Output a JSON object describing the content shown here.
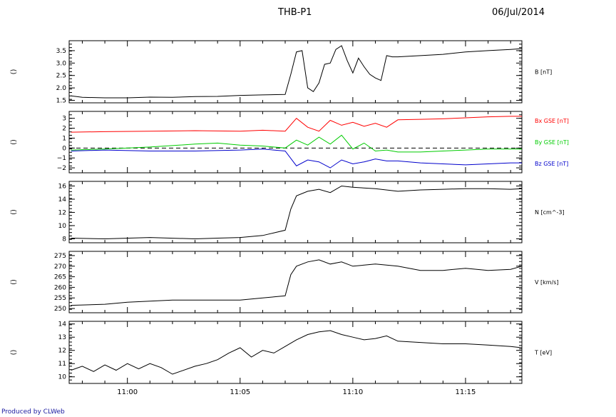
{
  "header": {
    "title": "THB-P1",
    "date": "06/Jul/2014"
  },
  "footer": {
    "credit": "Produced by CLWeb"
  },
  "chart_data": [
    {
      "type": "line",
      "panel": "B",
      "ylabel": "()",
      "ylim": [
        1.4,
        3.9
      ],
      "yticks": [
        1.5,
        2.0,
        2.5,
        3.0,
        3.5
      ],
      "ytick_labels": [
        "1.5",
        "2.0",
        "2.5",
        "3.0",
        "3.5"
      ],
      "series": [
        {
          "name": "B [nT]",
          "color": "#000000",
          "x": [
            "10:57:30",
            "10:58",
            "10:59",
            "11:00",
            "11:01",
            "11:02",
            "11:03",
            "11:04",
            "11:05",
            "11:06",
            "11:07",
            "11:07:15",
            "11:07:30",
            "11:07:45",
            "11:08",
            "11:08:15",
            "11:08:30",
            "11:08:45",
            "11:09",
            "11:09:15",
            "11:09:30",
            "11:09:45",
            "11:10",
            "11:10:15",
            "11:10:30",
            "11:10:45",
            "11:11",
            "11:11:15",
            "11:11:30",
            "11:11:45",
            "11:12",
            "11:13",
            "11:14",
            "11:15",
            "11:16",
            "11:17",
            "11:17:30"
          ],
          "y": [
            1.68,
            1.62,
            1.6,
            1.6,
            1.63,
            1.62,
            1.65,
            1.66,
            1.7,
            1.72,
            1.74,
            2.55,
            3.45,
            3.5,
            2.0,
            1.85,
            2.2,
            2.95,
            3.0,
            3.55,
            3.7,
            3.1,
            2.6,
            3.2,
            2.85,
            2.55,
            2.4,
            2.3,
            3.3,
            3.25,
            3.25,
            3.3,
            3.35,
            3.45,
            3.5,
            3.55,
            3.58
          ]
        }
      ]
    },
    {
      "type": "line",
      "panel": "B GSE components",
      "ylabel": "()",
      "ylim": [
        -2.5,
        3.7
      ],
      "yticks": [
        -2,
        -1,
        0,
        1,
        2,
        3
      ],
      "ytick_labels": [
        "−2",
        "−1",
        "0",
        "1",
        "2",
        "3"
      ],
      "reference_line": 0,
      "series": [
        {
          "name": "Bx GSE [nT]",
          "color": "#ff0000",
          "x": [
            "10:57:30",
            "10:59",
            "11:01",
            "11:03",
            "11:05",
            "11:06",
            "11:07",
            "11:07:30",
            "11:08",
            "11:08:30",
            "11:09",
            "11:09:30",
            "11:10",
            "11:10:30",
            "11:11",
            "11:11:30",
            "11:12",
            "11:13",
            "11:14",
            "11:15",
            "11:16",
            "11:17",
            "11:17:30"
          ],
          "y": [
            1.6,
            1.65,
            1.7,
            1.75,
            1.7,
            1.8,
            1.7,
            3.0,
            2.1,
            1.7,
            2.8,
            2.3,
            2.6,
            2.2,
            2.5,
            2.1,
            2.85,
            2.9,
            2.95,
            3.05,
            3.15,
            3.2,
            3.2
          ]
        },
        {
          "name": "By GSE [nT]",
          "color": "#00cc00",
          "x": [
            "10:57:30",
            "10:59",
            "11:01",
            "11:03",
            "11:04",
            "11:05",
            "11:06",
            "11:07",
            "11:07:30",
            "11:08",
            "11:08:30",
            "11:09",
            "11:09:30",
            "11:10",
            "11:10:30",
            "11:11",
            "11:11:30",
            "11:12",
            "11:13",
            "11:14",
            "11:15",
            "11:16",
            "11:17",
            "11:17:30"
          ],
          "y": [
            -0.2,
            -0.1,
            0.1,
            0.4,
            0.5,
            0.3,
            0.2,
            0.0,
            0.8,
            0.3,
            1.1,
            0.4,
            1.3,
            -0.1,
            0.5,
            -0.3,
            -0.2,
            -0.4,
            -0.4,
            -0.3,
            -0.2,
            -0.1,
            -0.1,
            -0.1
          ]
        },
        {
          "name": "Bz GSE [nT]",
          "color": "#0000cc",
          "x": [
            "10:57:30",
            "10:59",
            "11:01",
            "11:03",
            "11:05",
            "11:06",
            "11:07",
            "11:07:30",
            "11:08",
            "11:08:30",
            "11:09",
            "11:09:30",
            "11:10",
            "11:10:30",
            "11:11",
            "11:11:30",
            "11:12",
            "11:13",
            "11:14",
            "11:15",
            "11:16",
            "11:17",
            "11:17:30"
          ],
          "y": [
            -0.3,
            -0.2,
            -0.3,
            -0.3,
            -0.2,
            -0.1,
            -0.3,
            -1.8,
            -1.2,
            -1.4,
            -2.0,
            -1.2,
            -1.6,
            -1.4,
            -1.1,
            -1.3,
            -1.3,
            -1.5,
            -1.6,
            -1.7,
            -1.6,
            -1.5,
            -1.5
          ]
        }
      ]
    },
    {
      "type": "line",
      "panel": "N",
      "ylabel": "()",
      "ylim": [
        7.4,
        16.7
      ],
      "yticks": [
        8,
        10,
        12,
        14,
        16
      ],
      "ytick_labels": [
        "8",
        "10",
        "12",
        "14",
        "16"
      ],
      "series": [
        {
          "name": "N [cm^-3]",
          "color": "#000000",
          "x": [
            "10:57:30",
            "10:59",
            "11:01",
            "11:03",
            "11:04",
            "11:05",
            "11:06",
            "11:06:30",
            "11:07",
            "11:07:15",
            "11:07:30",
            "11:08",
            "11:08:30",
            "11:09",
            "11:09:30",
            "11:10",
            "11:11",
            "11:12",
            "11:13",
            "11:14",
            "11:15",
            "11:16",
            "11:17",
            "11:17:30"
          ],
          "y": [
            8.1,
            8.0,
            8.2,
            8.0,
            8.1,
            8.2,
            8.5,
            8.9,
            9.3,
            12.5,
            14.5,
            15.2,
            15.5,
            15.0,
            16.0,
            15.8,
            15.6,
            15.2,
            15.4,
            15.5,
            15.6,
            15.6,
            15.5,
            15.6
          ]
        }
      ]
    },
    {
      "type": "line",
      "panel": "V",
      "ylabel": "()",
      "ylim": [
        248,
        277
      ],
      "yticks": [
        250,
        255,
        260,
        265,
        270,
        275
      ],
      "ytick_labels": [
        "250",
        "255",
        "260",
        "265",
        "270",
        "275"
      ],
      "series": [
        {
          "name": "V [km/s]",
          "color": "#000000",
          "x": [
            "10:57:30",
            "10:59",
            "11:00",
            "11:01",
            "11:02",
            "11:03",
            "11:04",
            "11:05",
            "11:06",
            "11:06:30",
            "11:07",
            "11:07:15",
            "11:07:30",
            "11:08",
            "11:08:30",
            "11:09",
            "11:09:30",
            "11:10",
            "11:11",
            "11:12",
            "11:13",
            "11:14",
            "11:15",
            "11:16",
            "11:17",
            "11:17:30"
          ],
          "y": [
            251.5,
            252,
            253,
            253.5,
            254,
            254,
            254,
            254,
            255,
            255.5,
            256,
            266,
            270,
            272,
            273,
            271,
            272,
            270,
            271,
            270,
            268,
            268,
            269,
            268,
            268.5,
            270
          ]
        }
      ]
    },
    {
      "type": "line",
      "panel": "T",
      "ylabel": "()",
      "ylim": [
        9.5,
        14.2
      ],
      "yticks": [
        10,
        11,
        12,
        13,
        14
      ],
      "ytick_labels": [
        "10",
        "11",
        "12",
        "13",
        "14"
      ],
      "xticks": [
        "11:00",
        "11:05",
        "11:10",
        "11:15"
      ],
      "series": [
        {
          "name": "T [eV]",
          "color": "#000000",
          "x": [
            "10:57:30",
            "10:58",
            "10:58:30",
            "10:59",
            "10:59:30",
            "11:00",
            "11:00:30",
            "11:01",
            "11:01:30",
            "11:02",
            "11:03",
            "11:03:30",
            "11:04",
            "11:04:30",
            "11:05",
            "11:05:30",
            "11:06",
            "11:06:30",
            "11:07",
            "11:07:30",
            "11:08",
            "11:08:30",
            "11:09",
            "11:09:30",
            "11:10",
            "11:10:30",
            "11:11",
            "11:11:30",
            "11:12",
            "11:13",
            "11:14",
            "11:15",
            "11:16",
            "11:17",
            "11:17:30"
          ],
          "y": [
            10.5,
            10.8,
            10.4,
            10.9,
            10.5,
            11.0,
            10.6,
            11.0,
            10.7,
            10.2,
            10.8,
            11.0,
            11.3,
            11.8,
            12.2,
            11.5,
            12.0,
            11.8,
            12.3,
            12.8,
            13.2,
            13.4,
            13.5,
            13.2,
            13.0,
            12.8,
            12.9,
            13.1,
            12.7,
            12.6,
            12.5,
            12.5,
            12.4,
            12.3,
            12.2
          ]
        }
      ]
    }
  ]
}
